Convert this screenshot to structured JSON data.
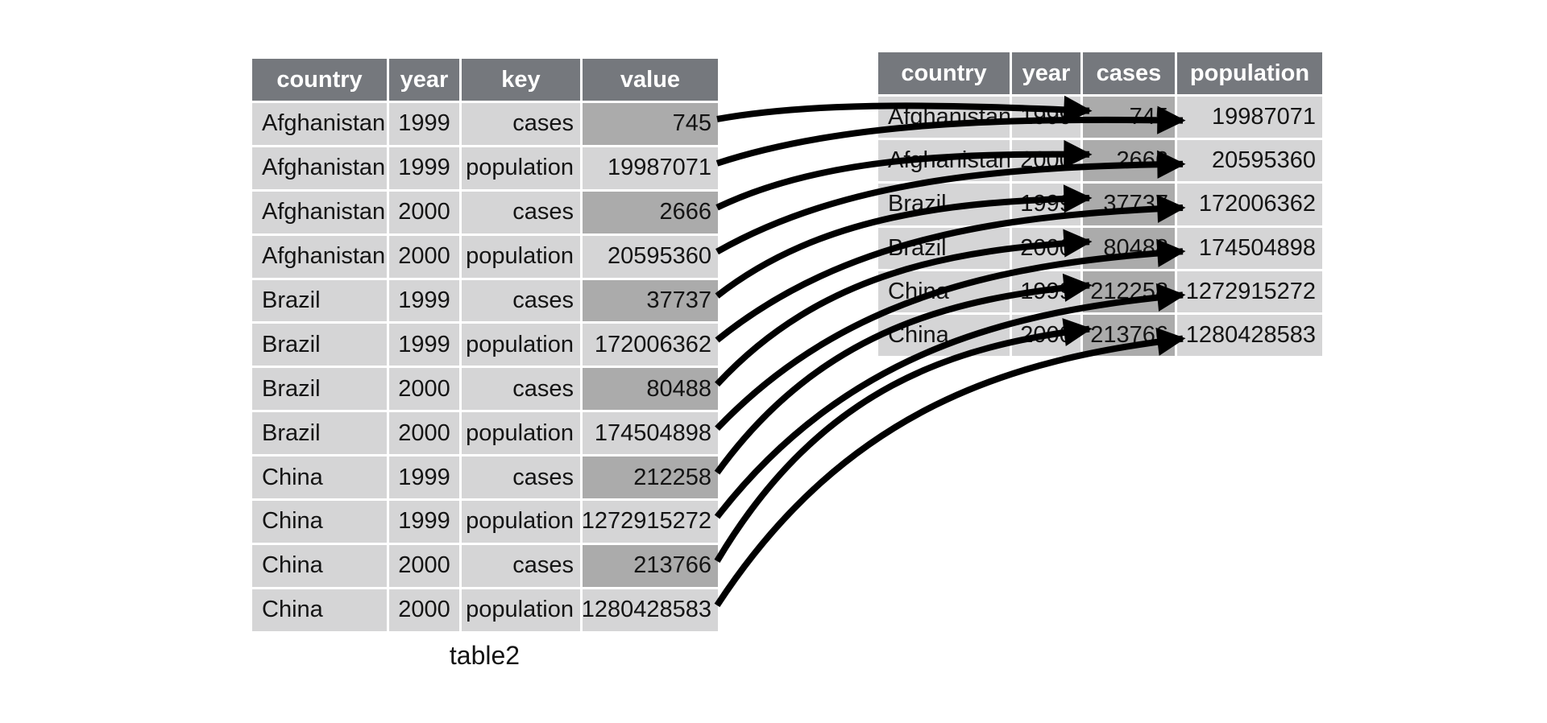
{
  "caption": "table2",
  "colors": {
    "background": "#ffffff",
    "header_bg": "#75787d",
    "header_text": "#ffffff",
    "cell_bg": "#d5d5d6",
    "highlight_bg": "#ababab",
    "cell_text": "#141414",
    "arrow": "#000000"
  },
  "left_table": {
    "headers": [
      "country",
      "year",
      "key",
      "value"
    ],
    "rows": [
      [
        "Afghanistan",
        "1999",
        "cases",
        "745"
      ],
      [
        "Afghanistan",
        "1999",
        "population",
        "19987071"
      ],
      [
        "Afghanistan",
        "2000",
        "cases",
        "2666"
      ],
      [
        "Afghanistan",
        "2000",
        "population",
        "20595360"
      ],
      [
        "Brazil",
        "1999",
        "cases",
        "37737"
      ],
      [
        "Brazil",
        "1999",
        "population",
        "172006362"
      ],
      [
        "Brazil",
        "2000",
        "cases",
        "80488"
      ],
      [
        "Brazil",
        "2000",
        "population",
        "174504898"
      ],
      [
        "China",
        "1999",
        "cases",
        "212258"
      ],
      [
        "China",
        "1999",
        "population",
        "1272915272"
      ],
      [
        "China",
        "2000",
        "cases",
        "213766"
      ],
      [
        "China",
        "2000",
        "population",
        "1280428583"
      ]
    ]
  },
  "right_table": {
    "headers": [
      "country",
      "year",
      "cases",
      "population"
    ],
    "rows": [
      [
        "Afghanistan",
        "1999",
        "745",
        "19987071"
      ],
      [
        "Afghanistan",
        "2000",
        "2666",
        "20595360"
      ],
      [
        "Brazil",
        "1999",
        "37737",
        "172006362"
      ],
      [
        "Brazil",
        "2000",
        "80488",
        "174504898"
      ],
      [
        "China",
        "1999",
        "212258",
        "1272915272"
      ],
      [
        "China",
        "2000",
        "213766",
        "1280428583"
      ]
    ]
  },
  "arrows": [
    {
      "from_left_row": 0,
      "to_right_row": 0,
      "to_column": "cases"
    },
    {
      "from_left_row": 1,
      "to_right_row": 0,
      "to_column": "population"
    },
    {
      "from_left_row": 2,
      "to_right_row": 1,
      "to_column": "cases"
    },
    {
      "from_left_row": 3,
      "to_right_row": 1,
      "to_column": "population"
    },
    {
      "from_left_row": 4,
      "to_right_row": 2,
      "to_column": "cases"
    },
    {
      "from_left_row": 5,
      "to_right_row": 2,
      "to_column": "population"
    },
    {
      "from_left_row": 6,
      "to_right_row": 3,
      "to_column": "cases"
    },
    {
      "from_left_row": 7,
      "to_right_row": 3,
      "to_column": "population"
    },
    {
      "from_left_row": 8,
      "to_right_row": 4,
      "to_column": "cases"
    },
    {
      "from_left_row": 9,
      "to_right_row": 4,
      "to_column": "population"
    },
    {
      "from_left_row": 10,
      "to_right_row": 5,
      "to_column": "cases"
    },
    {
      "from_left_row": 11,
      "to_right_row": 5,
      "to_column": "population"
    }
  ]
}
